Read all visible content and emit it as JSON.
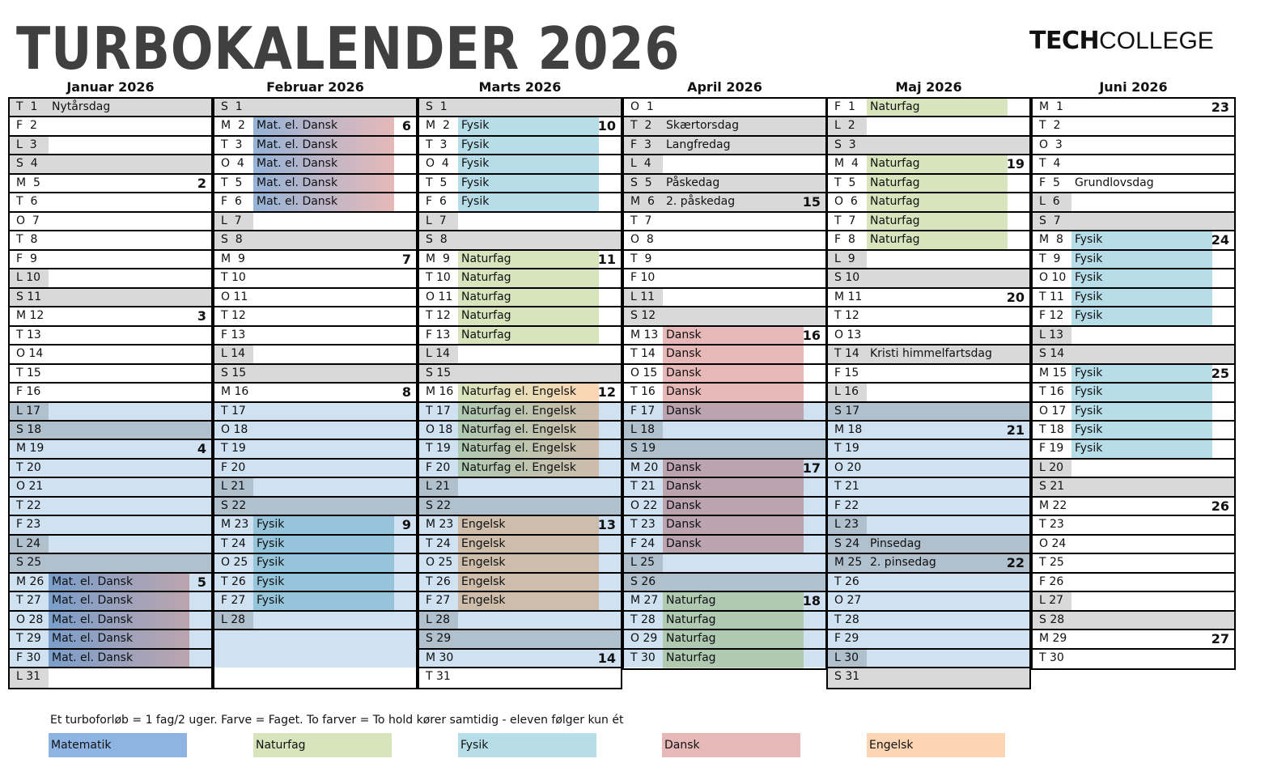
{
  "title": "TURBOKALENDER 2026",
  "logo": {
    "bold": "TECH",
    "light": "COLLEGE"
  },
  "colors": {
    "Matematik": "#8eb4e3",
    "Naturfag": "#d7e4bc",
    "Fysik": "#b7dde8",
    "Dansk": "#e6b9b8",
    "Engelsk": "#fcd5b4",
    "Mat. el. Dansk": [
      "#95b3d7",
      "#e6b9b8"
    ],
    "Naturfag el. Engelsk": [
      "#d7e4bc",
      "#fcd5b4"
    ],
    "weekend": "#d9d9d9"
  },
  "months": [
    {
      "title": "Januar 2026",
      "rows": [
        {
          "d": "T  1",
          "t": "Nytårsdag",
          "h": true
        },
        {
          "d": "F  2"
        },
        {
          "d": "L  3"
        },
        {
          "d": "S  4"
        },
        {
          "d": "M  5",
          "w": "2"
        },
        {
          "d": "T  6"
        },
        {
          "d": "O  7"
        },
        {
          "d": "T  8"
        },
        {
          "d": "F  9"
        },
        {
          "d": "L 10"
        },
        {
          "d": "S 11"
        },
        {
          "d": "M 12",
          "w": "3"
        },
        {
          "d": "T 13"
        },
        {
          "d": "O 14"
        },
        {
          "d": "T 15"
        },
        {
          "d": "F 16"
        },
        {
          "d": "L 17"
        },
        {
          "d": "S 18"
        },
        {
          "d": "M 19",
          "w": "4"
        },
        {
          "d": "T 20"
        },
        {
          "d": "O 21"
        },
        {
          "d": "T 22"
        },
        {
          "d": "F 23"
        },
        {
          "d": "L 24"
        },
        {
          "d": "S 25"
        },
        {
          "d": "M 26",
          "t": "Mat. el. Dansk",
          "w": "5"
        },
        {
          "d": "T 27",
          "t": "Mat. el. Dansk"
        },
        {
          "d": "O 28",
          "t": "Mat. el. Dansk"
        },
        {
          "d": "T 29",
          "t": "Mat. el. Dansk"
        },
        {
          "d": "F 30",
          "t": "Mat. el. Dansk"
        },
        {
          "d": "L 31"
        }
      ]
    },
    {
      "title": "Februar 2026",
      "rows": [
        {
          "d": "S  1"
        },
        {
          "d": "M  2",
          "t": "Mat. el. Dansk",
          "w": "6"
        },
        {
          "d": "T  3",
          "t": "Mat. el. Dansk"
        },
        {
          "d": "O  4",
          "t": "Mat. el. Dansk"
        },
        {
          "d": "T  5",
          "t": "Mat. el. Dansk"
        },
        {
          "d": "F  6",
          "t": "Mat. el. Dansk"
        },
        {
          "d": "L  7"
        },
        {
          "d": "S  8"
        },
        {
          "d": "M  9",
          "w": "7"
        },
        {
          "d": "T 10"
        },
        {
          "d": "O 11"
        },
        {
          "d": "T 12"
        },
        {
          "d": "F 13"
        },
        {
          "d": "L 14"
        },
        {
          "d": "S 15"
        },
        {
          "d": "M 16",
          "w": "8"
        },
        {
          "d": "T 17"
        },
        {
          "d": "O 18"
        },
        {
          "d": "T 19"
        },
        {
          "d": "F 20"
        },
        {
          "d": "L 21"
        },
        {
          "d": "S 22"
        },
        {
          "d": "M 23",
          "t": "Fysik",
          "w": "9"
        },
        {
          "d": "T 24",
          "t": "Fysik"
        },
        {
          "d": "O 25",
          "t": "Fysik"
        },
        {
          "d": "T 26",
          "t": "Fysik"
        },
        {
          "d": "F 27",
          "t": "Fysik"
        },
        {
          "d": "L 28"
        },
        {
          "d": ""
        },
        {
          "d": ""
        },
        {
          "d": ""
        }
      ]
    },
    {
      "title": "Marts 2026",
      "rows": [
        {
          "d": "S  1"
        },
        {
          "d": "M  2",
          "t": "Fysik",
          "w": "10"
        },
        {
          "d": "T  3",
          "t": "Fysik"
        },
        {
          "d": "O  4",
          "t": "Fysik"
        },
        {
          "d": "T  5",
          "t": "Fysik"
        },
        {
          "d": "F  6",
          "t": "Fysik"
        },
        {
          "d": "L  7"
        },
        {
          "d": "S  8"
        },
        {
          "d": "M  9",
          "t": "Naturfag",
          "w": "11"
        },
        {
          "d": "T 10",
          "t": "Naturfag"
        },
        {
          "d": "O 11",
          "t": "Naturfag"
        },
        {
          "d": "T 12",
          "t": "Naturfag"
        },
        {
          "d": "F 13",
          "t": "Naturfag"
        },
        {
          "d": "L 14"
        },
        {
          "d": "S 15"
        },
        {
          "d": "M 16",
          "t": "Naturfag el. Engelsk",
          "w": "12"
        },
        {
          "d": "T 17",
          "t": "Naturfag el. Engelsk"
        },
        {
          "d": "O 18",
          "t": "Naturfag el. Engelsk"
        },
        {
          "d": "T 19",
          "t": "Naturfag el. Engelsk"
        },
        {
          "d": "F 20",
          "t": "Naturfag el. Engelsk"
        },
        {
          "d": "L 21"
        },
        {
          "d": "S 22"
        },
        {
          "d": "M 23",
          "t": "Engelsk",
          "w": "13"
        },
        {
          "d": "T 24",
          "t": "Engelsk"
        },
        {
          "d": "O 25",
          "t": "Engelsk"
        },
        {
          "d": "T 26",
          "t": "Engelsk"
        },
        {
          "d": "F 27",
          "t": "Engelsk"
        },
        {
          "d": "L 28"
        },
        {
          "d": "S 29"
        },
        {
          "d": "M 30",
          "w": "14"
        },
        {
          "d": "T 31"
        }
      ]
    },
    {
      "title": "April 2026",
      "rows": [
        {
          "d": "O  1"
        },
        {
          "d": "T  2",
          "t": "Skærtorsdag",
          "h": true
        },
        {
          "d": "F  3",
          "t": "Langfredag",
          "h": true
        },
        {
          "d": "L  4"
        },
        {
          "d": "S  5",
          "t": "Påskedag"
        },
        {
          "d": "M  6",
          "t": "2. påskedag",
          "w": "15",
          "h": true
        },
        {
          "d": "T  7"
        },
        {
          "d": "O  8"
        },
        {
          "d": "T  9"
        },
        {
          "d": "F 10"
        },
        {
          "d": "L 11"
        },
        {
          "d": "S 12"
        },
        {
          "d": "M 13",
          "t": "Dansk",
          "w": "16"
        },
        {
          "d": "T 14",
          "t": "Dansk"
        },
        {
          "d": "O 15",
          "t": "Dansk"
        },
        {
          "d": "T 16",
          "t": "Dansk"
        },
        {
          "d": "F 17",
          "t": "Dansk"
        },
        {
          "d": "L 18"
        },
        {
          "d": "S 19"
        },
        {
          "d": "M 20",
          "t": "Dansk",
          "w": "17"
        },
        {
          "d": "T 21",
          "t": "Dansk"
        },
        {
          "d": "O 22",
          "t": "Dansk"
        },
        {
          "d": "T 23",
          "t": "Dansk"
        },
        {
          "d": "F 24",
          "t": "Dansk"
        },
        {
          "d": "L 25"
        },
        {
          "d": "S 26"
        },
        {
          "d": "M 27",
          "t": "Naturfag",
          "w": "18"
        },
        {
          "d": "T 28",
          "t": "Naturfag"
        },
        {
          "d": "O 29",
          "t": "Naturfag"
        },
        {
          "d": "T 30",
          "t": "Naturfag"
        }
      ]
    },
    {
      "title": "Maj 2026",
      "rows": [
        {
          "d": "F  1",
          "t": "Naturfag"
        },
        {
          "d": "L  2"
        },
        {
          "d": "S  3"
        },
        {
          "d": "M  4",
          "t": "Naturfag",
          "w": "19"
        },
        {
          "d": "T  5",
          "t": "Naturfag"
        },
        {
          "d": "O  6",
          "t": "Naturfag"
        },
        {
          "d": "T  7",
          "t": "Naturfag"
        },
        {
          "d": "F  8",
          "t": "Naturfag"
        },
        {
          "d": "L  9"
        },
        {
          "d": "S 10"
        },
        {
          "d": "M 11",
          "w": "20"
        },
        {
          "d": "T 12"
        },
        {
          "d": "O 13"
        },
        {
          "d": "T 14",
          "t": "Kristi himmelfartsdag",
          "h": true
        },
        {
          "d": "F 15"
        },
        {
          "d": "L 16"
        },
        {
          "d": "S 17"
        },
        {
          "d": "M 18",
          "w": "21"
        },
        {
          "d": "T 19"
        },
        {
          "d": "O 20"
        },
        {
          "d": "T 21"
        },
        {
          "d": "F 22"
        },
        {
          "d": "L 23"
        },
        {
          "d": "S 24",
          "t": "Pinsedag"
        },
        {
          "d": "M 25",
          "t": "2. pinsedag",
          "w": "22",
          "h": true
        },
        {
          "d": "T 26"
        },
        {
          "d": "O 27"
        },
        {
          "d": "T 28"
        },
        {
          "d": "F 29"
        },
        {
          "d": "L 30"
        },
        {
          "d": "S 31"
        }
      ]
    },
    {
      "title": "Juni 2026",
      "rows": [
        {
          "d": "M  1",
          "w": "23"
        },
        {
          "d": "T  2"
        },
        {
          "d": "O  3"
        },
        {
          "d": "T  4"
        },
        {
          "d": "F  5",
          "t": "Grundlovsdag"
        },
        {
          "d": "L  6"
        },
        {
          "d": "S  7"
        },
        {
          "d": "M  8",
          "t": "Fysik",
          "w": "24"
        },
        {
          "d": "T  9",
          "t": "Fysik"
        },
        {
          "d": "O 10",
          "t": "Fysik"
        },
        {
          "d": "T 11",
          "t": "Fysik"
        },
        {
          "d": "F 12",
          "t": "Fysik"
        },
        {
          "d": "L 13"
        },
        {
          "d": "S 14"
        },
        {
          "d": "M 15",
          "t": "Fysik",
          "w": "25"
        },
        {
          "d": "T 16",
          "t": "Fysik"
        },
        {
          "d": "O 17",
          "t": "Fysik"
        },
        {
          "d": "T 18",
          "t": "Fysik"
        },
        {
          "d": "F 19",
          "t": "Fysik"
        },
        {
          "d": "L 20"
        },
        {
          "d": "S 21"
        },
        {
          "d": "M 22",
          "w": "26"
        },
        {
          "d": "T 23"
        },
        {
          "d": "O 24"
        },
        {
          "d": "T 25"
        },
        {
          "d": "F 26"
        },
        {
          "d": "L 27"
        },
        {
          "d": "S 28"
        },
        {
          "d": "M 29",
          "w": "27"
        },
        {
          "d": "T 30"
        }
      ]
    }
  ],
  "note": "Et turboforløb  = 1 fag/2 uger. Farve = Faget. To farver = To hold kører samtidig - eleven følger kun ét",
  "legend": [
    {
      "label": "Matematik",
      "color": "#8eb4e3"
    },
    {
      "label": "Naturfag",
      "color": "#d7e4bc"
    },
    {
      "label": "Fysik",
      "color": "#b7dde8"
    },
    {
      "label": "Dansk",
      "color": "#e6b9b8"
    },
    {
      "label": "Engelsk",
      "color": "#fcd5b4"
    }
  ]
}
